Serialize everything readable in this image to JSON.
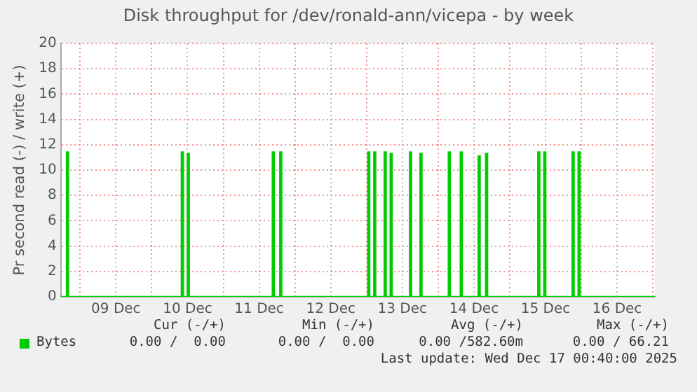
{
  "chart_data": {
    "type": "step",
    "title": "Disk throughput for /dev/ronald-ann/vicepa - by week",
    "ylabel": "Pr second read (-) / write (+)",
    "series": [
      {
        "name": "Bytes",
        "color": "#00cc00",
        "x": [
          "2025-12-08T17:30",
          "2025-12-08T19:30",
          "2025-12-08T20:00",
          "2025-12-10T10:00",
          "2025-12-10T10:30",
          "2025-12-10T12:00",
          "2025-12-10T12:30",
          "2025-12-11T16:30",
          "2025-12-11T17:00",
          "2025-12-11T19:00",
          "2025-12-11T19:30",
          "2025-12-13T00:30",
          "2025-12-13T01:00",
          "2025-12-13T02:30",
          "2025-12-13T03:00",
          "2025-12-13T06:00",
          "2025-12-13T06:30",
          "2025-12-13T08:00",
          "2025-12-13T08:30",
          "2025-12-13T14:30",
          "2025-12-13T15:00",
          "2025-12-13T18:00",
          "2025-12-13T18:30",
          "2025-12-14T03:30",
          "2025-12-14T04:00",
          "2025-12-14T07:30",
          "2025-12-14T08:00",
          "2025-12-14T13:30",
          "2025-12-14T14:00",
          "2025-12-14T16:00",
          "2025-12-14T16:30",
          "2025-12-15T09:30",
          "2025-12-15T10:00",
          "2025-12-15T11:30",
          "2025-12-15T12:00",
          "2025-12-15T21:00",
          "2025-12-15T21:30",
          "2025-12-15T23:00",
          "2025-12-15T23:30",
          "2025-12-17T00:40"
        ],
        "values": [
          0,
          11.4,
          0,
          11.4,
          0,
          11.3,
          0,
          11.4,
          0,
          11.4,
          0,
          11.4,
          0,
          11.4,
          0,
          11.4,
          0,
          11.3,
          0,
          11.4,
          0,
          11.3,
          0,
          11.4,
          0,
          11.4,
          0,
          11.1,
          0,
          11.3,
          0,
          11.4,
          0,
          11.4,
          0,
          11.4,
          0,
          11.4,
          0,
          0
        ]
      }
    ],
    "xlim": [
      "2025-12-08T17:30",
      "2025-12-17T00:40"
    ],
    "xticks": [
      {
        "value": "2025-12-09T00:00",
        "label": null
      },
      {
        "value": "2025-12-09T12:00",
        "label": "09 Dec"
      },
      {
        "value": "2025-12-10T00:00",
        "label": null
      },
      {
        "value": "2025-12-10T12:00",
        "label": "10 Dec"
      },
      {
        "value": "2025-12-11T00:00",
        "label": null
      },
      {
        "value": "2025-12-11T12:00",
        "label": "11 Dec"
      },
      {
        "value": "2025-12-12T00:00",
        "label": null
      },
      {
        "value": "2025-12-12T12:00",
        "label": "12 Dec"
      },
      {
        "value": "2025-12-13T00:00",
        "label": null
      },
      {
        "value": "2025-12-13T12:00",
        "label": "13 Dec"
      },
      {
        "value": "2025-12-14T00:00",
        "label": null
      },
      {
        "value": "2025-12-14T12:00",
        "label": "14 Dec"
      },
      {
        "value": "2025-12-15T00:00",
        "label": null
      },
      {
        "value": "2025-12-15T12:00",
        "label": "15 Dec"
      },
      {
        "value": "2025-12-16T00:00",
        "label": null
      },
      {
        "value": "2025-12-16T12:00",
        "label": "16 Dec"
      },
      {
        "value": "2025-12-17T00:00",
        "label": null
      }
    ],
    "ylim": [
      0,
      20
    ],
    "yticks": [
      0,
      2,
      4,
      6,
      8,
      10,
      12,
      14,
      16,
      18,
      20
    ],
    "grid": true,
    "legend": "bottom left",
    "annotations": [
      "Cur (-/+)",
      "Min (-/+)",
      "Avg (-/+)",
      "Max (-/+)",
      "0.00 /  0.00",
      "0.00 /  0.00",
      "0.00 /582.60m",
      "0.00 / 66.21",
      "Last update: Wed Dec 17 00:40:00 2025"
    ]
  }
}
